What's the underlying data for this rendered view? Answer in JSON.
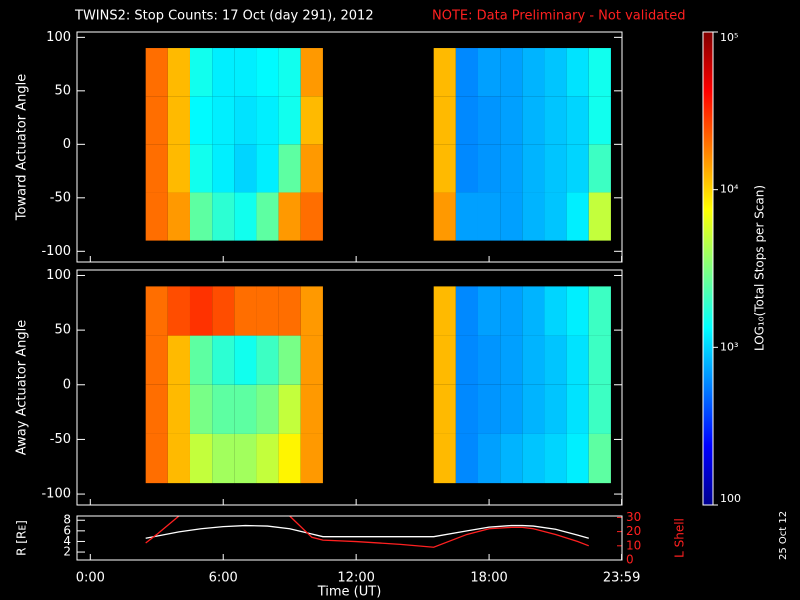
{
  "header": {
    "title": "TWINS2: Stop Counts: 17 Oct (day 291), 2012",
    "note": "NOTE: Data Preliminary - Not validated"
  },
  "footer_date": "25 Oct 12",
  "colorbar": {
    "label": "LOG₁₀(Total Stops per Scan)",
    "lim": [
      100,
      100000
    ],
    "log": true,
    "ticks": [
      {
        "value": 100000,
        "label": "10⁵"
      },
      {
        "value": 10000,
        "label": "10⁴"
      },
      {
        "value": 1000,
        "label": "10³"
      },
      100
    ]
  },
  "chart_data": [
    {
      "type": "heatmap",
      "ylabel": "Toward Actuator Angle",
      "xlim": [
        -0.6,
        24
      ],
      "ylim": [
        -110,
        105
      ],
      "yticks": [
        -100,
        -50,
        0,
        50,
        100
      ],
      "xticks": [
        {
          "value": 0,
          "label": "0:00"
        },
        {
          "value": 6,
          "label": "6:00"
        },
        {
          "value": 12,
          "label": "12:00"
        },
        {
          "value": 18,
          "label": "18:00"
        },
        {
          "value": 23.983,
          "label": "23:59"
        }
      ],
      "x_bins": [
        2.5,
        3.5,
        4.5,
        5.5,
        6.5,
        7.5,
        8.5,
        9.5,
        10.5,
        11.5,
        12.5,
        13.5,
        14.5,
        15.5,
        16.5,
        17.5,
        18.5,
        19.5,
        20.5,
        21.5,
        22.5,
        23.5
      ],
      "y_bins": [
        -90,
        -45,
        0,
        45,
        90
      ],
      "values": [
        [
          20000,
          15000,
          2500,
          1800,
          1500,
          2500,
          15000,
          20000,
          null,
          null,
          null,
          null,
          null,
          15000,
          700,
          700,
          700,
          800,
          900,
          1200,
          5000
        ],
        [
          20000,
          12000,
          1500,
          1200,
          1000,
          1200,
          2500,
          15000,
          null,
          null,
          null,
          null,
          null,
          12000,
          600,
          650,
          700,
          800,
          900,
          1000,
          2000
        ],
        [
          20000,
          12000,
          1300,
          1200,
          1100,
          1200,
          1500,
          12000,
          null,
          null,
          null,
          null,
          null,
          12000,
          600,
          650,
          700,
          800,
          900,
          1000,
          1500
        ],
        [
          20000,
          12000,
          1500,
          1200,
          1200,
          1300,
          1500,
          15000,
          null,
          null,
          null,
          null,
          null,
          12000,
          600,
          700,
          700,
          800,
          900,
          1100,
          1500
        ]
      ]
    },
    {
      "type": "heatmap",
      "ylabel": "Away Actuator Angle",
      "xlim": [
        -0.6,
        24
      ],
      "ylim": [
        -110,
        105
      ],
      "yticks": [
        -100,
        -50,
        0,
        50,
        100
      ],
      "xticks": [
        {
          "value": 0,
          "label": "0:00"
        },
        {
          "value": 6,
          "label": "6:00"
        },
        {
          "value": 12,
          "label": "12:00"
        },
        {
          "value": 18,
          "label": "18:00"
        },
        {
          "value": 23.983,
          "label": "23:59"
        }
      ],
      "x_bins": [
        2.5,
        3.5,
        4.5,
        5.5,
        6.5,
        7.5,
        8.5,
        9.5,
        10.5,
        11.5,
        12.5,
        13.5,
        14.5,
        15.5,
        16.5,
        17.5,
        18.5,
        19.5,
        20.5,
        21.5,
        22.5,
        23.5
      ],
      "y_bins": [
        -90,
        -45,
        0,
        45,
        90
      ],
      "values": [
        [
          20000,
          12000,
          5000,
          4000,
          4000,
          5000,
          8000,
          15000,
          null,
          null,
          null,
          null,
          null,
          12000,
          600,
          700,
          800,
          900,
          1000,
          1200,
          2500
        ],
        [
          20000,
          12000,
          3000,
          2500,
          2500,
          3000,
          5000,
          15000,
          null,
          null,
          null,
          null,
          null,
          12000,
          600,
          650,
          700,
          800,
          900,
          1100,
          2000
        ],
        [
          20000,
          12000,
          2500,
          1800,
          1500,
          2000,
          3000,
          15000,
          null,
          null,
          null,
          null,
          null,
          12000,
          600,
          650,
          700,
          800,
          900,
          1100,
          2000
        ],
        [
          20000,
          25000,
          30000,
          25000,
          20000,
          20000,
          20000,
          15000,
          null,
          null,
          null,
          null,
          null,
          12000,
          600,
          700,
          700,
          800,
          1000,
          1200,
          2000
        ]
      ]
    },
    {
      "type": "line",
      "ylabel": "R [Rᴇ]",
      "y2label": "L Shell",
      "xlabel": "Time (UT)",
      "xlim": [
        -0.6,
        24
      ],
      "ylim": [
        0.5,
        8.8
      ],
      "yticks": [
        2,
        4,
        6,
        8
      ],
      "y2lim": [
        0,
        31
      ],
      "y2ticks": [
        0,
        10,
        20,
        30
      ],
      "xticks": [
        {
          "value": 0,
          "label": "0:00"
        },
        {
          "value": 6,
          "label": "6:00"
        },
        {
          "value": 12,
          "label": "12:00"
        },
        {
          "value": 18,
          "label": "18:00"
        },
        {
          "value": 23.983,
          "label": "23:59"
        }
      ],
      "x": [
        2.5,
        3,
        4,
        5,
        6,
        7,
        8,
        9,
        10,
        10.5,
        12,
        14,
        15.5,
        17,
        18,
        19,
        19.5,
        20,
        21,
        22,
        22.5
      ],
      "series": [
        {
          "color": "#ffffff",
          "values": [
            4.6,
            5,
            5.8,
            6.4,
            6.8,
            7,
            6.9,
            6.4,
            5.4,
            4.9,
            4.9,
            4.9,
            4.9,
            6,
            6.7,
            7,
            7,
            6.9,
            6.3,
            5.2,
            4.6
          ]
        },
        {
          "color": "#ff2020",
          "axis": "y2",
          "values": [
            12,
            18,
            31,
            null,
            null,
            null,
            null,
            31,
            16,
            14,
            13,
            11,
            9,
            18,
            22,
            23,
            23,
            22,
            18,
            13,
            10
          ]
        }
      ]
    }
  ]
}
